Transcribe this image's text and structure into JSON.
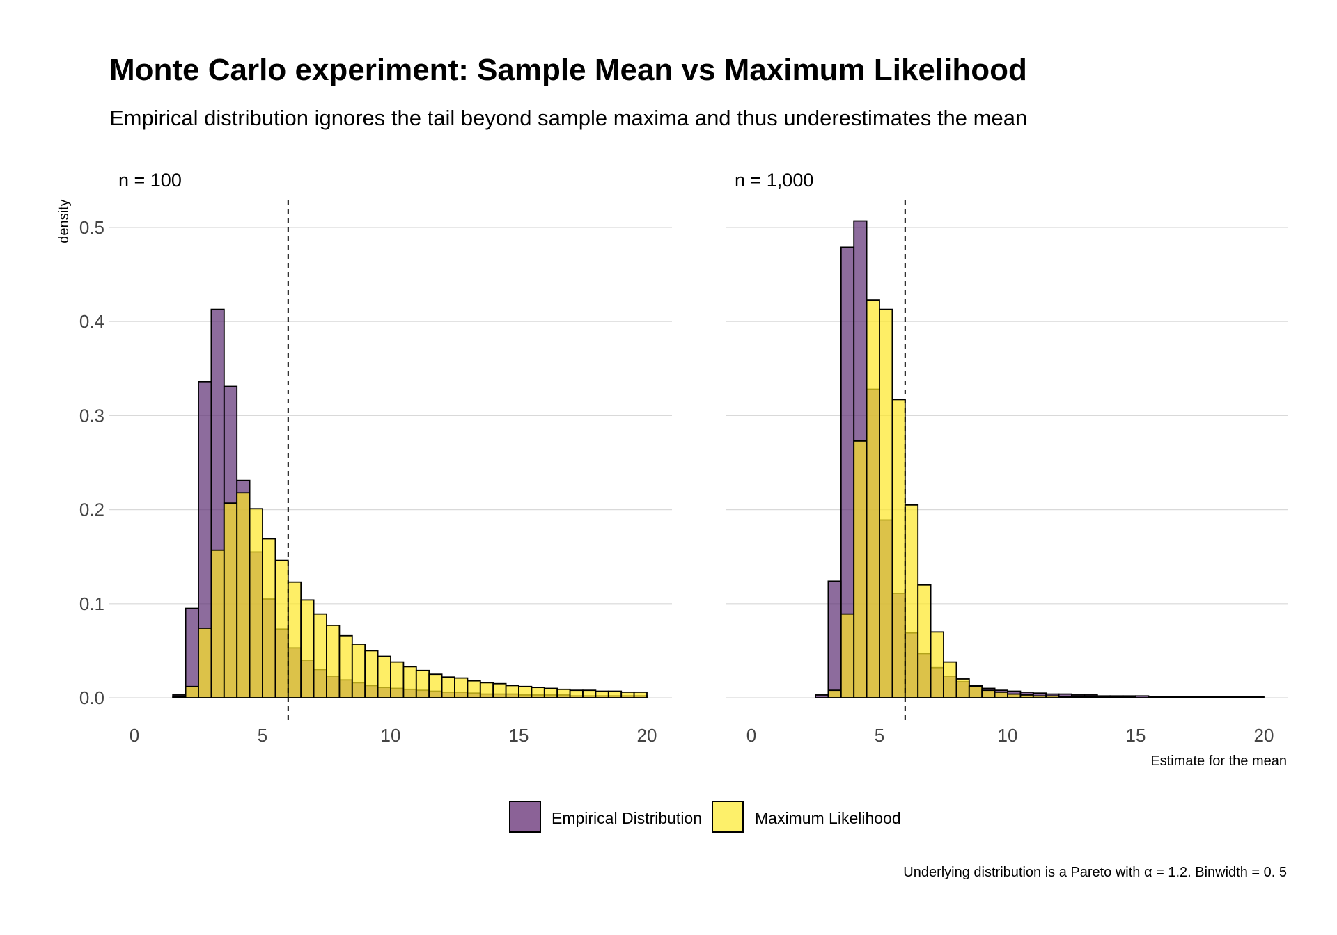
{
  "chart_data": {
    "type": "bar",
    "title": "Monte Carlo experiment: Sample Mean vs Maximum Likelihood",
    "subtitle": "Empirical distribution ignores the tail beyond sample maxima and thus underestimates the mean",
    "ylabel": "density",
    "xlabel": "Estimate for the mean",
    "caption": "Underlying distribution is a Pareto with α = 1.2. Binwidth = 0. 5",
    "binwidth": 0.5,
    "xlim": [
      0,
      20
    ],
    "ylim": [
      0,
      0.5
    ],
    "xticks": [
      0,
      5,
      10,
      15,
      20
    ],
    "yticks": [
      0.0,
      0.1,
      0.2,
      0.3,
      0.4,
      0.5
    ],
    "xtick_labels": [
      "0",
      "5",
      "10",
      "15",
      "20"
    ],
    "ytick_labels": [
      "0.0",
      "0.1",
      "0.2",
      "0.3",
      "0.4",
      "0.5"
    ],
    "reference_line": {
      "x": 6,
      "style": "dashed"
    },
    "grid": "horizontal",
    "legend": {
      "position": "bottom",
      "items": [
        {
          "label": "Empirical Distribution",
          "color": "#8B6297"
        },
        {
          "label": "Maximum Likelihood",
          "color": "#FDF06A"
        }
      ]
    },
    "colors": {
      "empirical": "#5C2D73",
      "mle": "#FDE725",
      "overlap": "#CFB14A",
      "outline": "#000000"
    },
    "bin_centers": [
      0.25,
      0.75,
      1.25,
      1.75,
      2.25,
      2.75,
      3.25,
      3.75,
      4.25,
      4.75,
      5.25,
      5.75,
      6.25,
      6.75,
      7.25,
      7.75,
      8.25,
      8.75,
      9.25,
      9.75,
      10.25,
      10.75,
      11.25,
      11.75,
      12.25,
      12.75,
      13.25,
      13.75,
      14.25,
      14.75,
      15.25,
      15.75,
      16.25,
      16.75,
      17.25,
      17.75,
      18.25,
      18.75,
      19.25,
      19.75
    ],
    "panels": [
      {
        "strip": "n = 100",
        "series": [
          {
            "name": "Empirical Distribution",
            "values": [
              0,
              0,
              0,
              0.003,
              0.095,
              0.336,
              0.413,
              0.331,
              0.231,
              0.155,
              0.105,
              0.073,
              0.053,
              0.04,
              0.03,
              0.023,
              0.019,
              0.016,
              0.013,
              0.011,
              0.01,
              0.009,
              0.008,
              0.007,
              0.006,
              0.006,
              0.005,
              0.004,
              0.004,
              0.004,
              0.003,
              0.003,
              0.003,
              0.003,
              0.002,
              0.002,
              0.002,
              0.002,
              0.002,
              0.002
            ]
          },
          {
            "name": "Maximum Likelihood",
            "values": [
              0,
              0,
              0,
              0.001,
              0.012,
              0.074,
              0.157,
              0.207,
              0.218,
              0.201,
              0.169,
              0.146,
              0.123,
              0.104,
              0.089,
              0.077,
              0.066,
              0.057,
              0.05,
              0.044,
              0.038,
              0.033,
              0.029,
              0.025,
              0.022,
              0.021,
              0.018,
              0.016,
              0.015,
              0.013,
              0.012,
              0.011,
              0.01,
              0.009,
              0.008,
              0.008,
              0.007,
              0.007,
              0.006,
              0.006
            ]
          }
        ]
      },
      {
        "strip": "n = 1,000",
        "series": [
          {
            "name": "Empirical Distribution",
            "values": [
              0,
              0,
              0,
              0,
              0,
              0.003,
              0.124,
              0.479,
              0.507,
              0.328,
              0.189,
              0.111,
              0.069,
              0.047,
              0.032,
              0.023,
              0.017,
              0.013,
              0.01,
              0.008,
              0.007,
              0.006,
              0.005,
              0.004,
              0.004,
              0.003,
              0.003,
              0.002,
              0.002,
              0.002,
              0.002,
              0.001,
              0.001,
              0.001,
              0.001,
              0.001,
              0.001,
              0.001,
              0.001,
              0.001
            ]
          },
          {
            "name": "Maximum Likelihood",
            "values": [
              0,
              0,
              0,
              0,
              0,
              0,
              0.008,
              0.089,
              0.273,
              0.423,
              0.413,
              0.317,
              0.205,
              0.12,
              0.07,
              0.038,
              0.02,
              0.012,
              0.008,
              0.006,
              0.004,
              0.003,
              0.002,
              0.002,
              0.001,
              0.001,
              0.001,
              0.001,
              0.001,
              0.001,
              0,
              0,
              0,
              0,
              0,
              0,
              0,
              0,
              0,
              0
            ]
          }
        ]
      }
    ]
  }
}
